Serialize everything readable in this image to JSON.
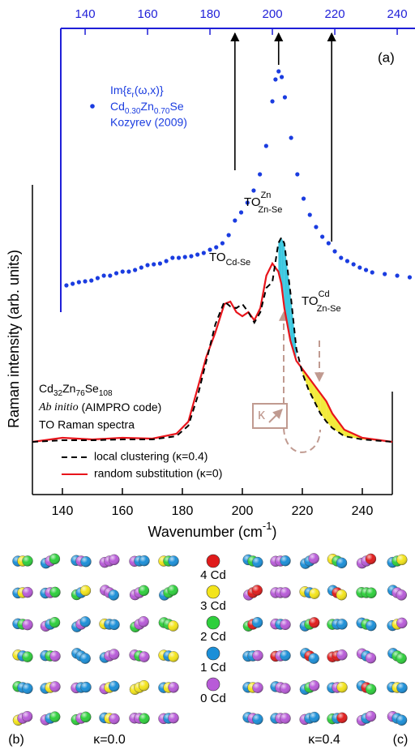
{
  "chart_data": [
    {
      "type": "scatter",
      "xlim": [
        132.2,
        245.7
      ],
      "xticks": [
        140,
        160,
        180,
        200,
        220,
        240
      ],
      "ylim": [
        0,
        365
      ],
      "axis_color": "#1f1fd8",
      "series": [
        {
          "color": "#1a3ce0",
          "x": [
            134,
            136,
            138,
            140,
            142,
            144,
            146,
            148,
            150,
            152,
            154,
            156,
            158,
            160,
            162,
            164,
            166,
            168,
            170,
            172,
            174,
            176,
            178,
            180,
            182,
            184,
            186,
            188,
            190,
            192,
            194,
            196,
            198,
            200,
            201,
            202,
            203,
            204,
            206,
            208,
            210,
            212,
            214,
            216,
            218,
            220,
            222,
            224,
            226,
            228,
            230,
            232,
            236,
            240,
            244
          ],
          "values": [
            48,
            50,
            52,
            53,
            54,
            57,
            60,
            60,
            63,
            65,
            65,
            67,
            70,
            73,
            74,
            75,
            78,
            82,
            82,
            83,
            84,
            86,
            88,
            92,
            95,
            100,
            110,
            128,
            138,
            150,
            165,
            185,
            220,
            275,
            302,
            312,
            305,
            280,
            230,
            185,
            155,
            135,
            120,
            108,
            100,
            90,
            82,
            78,
            74,
            70,
            67,
            64,
            62,
            60,
            58
          ]
        }
      ],
      "arrows_x": [
        188,
        202,
        219
      ],
      "panel_label": "(a)",
      "annotations": {
        "im": [
          "Im{ε",
          "r",
          "(ω,x)}"
        ],
        "compound": [
          "Cd",
          "0.30",
          "Zn",
          "0.70",
          "Se"
        ],
        "source": "Kozyrev (2009)",
        "to_zn": [
          "TO",
          "Zn",
          "Zn-Se"
        ]
      }
    },
    {
      "type": "line",
      "xlim": [
        130,
        250
      ],
      "xticks": [
        140,
        160,
        180,
        200,
        220,
        240
      ],
      "ylim": [
        0,
        382
      ],
      "xlabel": [
        "Wavenumber (cm",
        "-1",
        ")"
      ],
      "ylabel": "Raman intensity (arb. units)",
      "x": [
        130,
        140,
        150,
        160,
        170,
        178,
        182,
        185,
        188,
        191,
        194,
        196,
        198,
        200,
        202,
        204,
        206,
        208,
        210,
        212,
        213,
        214,
        216,
        218,
        220,
        222,
        224,
        226,
        228,
        230,
        234,
        240,
        250
      ],
      "series": [
        {
          "name": "local clustering (κ=0.4)",
          "color": "#000000",
          "dash": true,
          "values": [
            65,
            67,
            67,
            68,
            68,
            72,
            85,
            120,
            165,
            210,
            238,
            232,
            230,
            235,
            225,
            212,
            225,
            255,
            262,
            310,
            317,
            310,
            250,
            180,
            150,
            130,
            115,
            100,
            90,
            82,
            72,
            68,
            65
          ]
        },
        {
          "name": "random substitution (κ=0)",
          "color": "#e8141b",
          "dash": false,
          "values": [
            65,
            70,
            68,
            70,
            69,
            75,
            90,
            130,
            170,
            200,
            235,
            238,
            225,
            220,
            225,
            215,
            230,
            270,
            285,
            275,
            260,
            230,
            190,
            165,
            155,
            145,
            135,
            125,
            115,
            100,
            80,
            70,
            65
          ]
        }
      ],
      "fill_colors": [
        "#3cc8e0",
        "#f2ea3c"
      ],
      "annotations": {
        "to_cd": [
          "TO",
          "Cd-Se"
        ],
        "to_cd_zn": [
          "TO",
          "Cd",
          "Zn-Se"
        ],
        "supercell": [
          "Cd",
          "32",
          "Zn",
          "76",
          "Se",
          "108"
        ],
        "method": [
          "Ab initio",
          " (AIMPRO code)"
        ],
        "spectra": "TO Raman spectra",
        "kappa": "κ"
      }
    }
  ],
  "clusters": {
    "legend": [
      {
        "label": "4 Cd",
        "color": "#e01b1b"
      },
      {
        "label": "3 Cd",
        "color": "#f3e41a"
      },
      {
        "label": "2 Cd",
        "color": "#2ecf3c"
      },
      {
        "label": "1 Cd",
        "color": "#1b8fd8"
      },
      {
        "label": "0 Cd",
        "color": "#b85bd8"
      }
    ],
    "panels": [
      {
        "label": "(b)",
        "kappa": "κ=0.0"
      },
      {
        "label": "(c)",
        "kappa": "κ=0.4"
      }
    ]
  }
}
